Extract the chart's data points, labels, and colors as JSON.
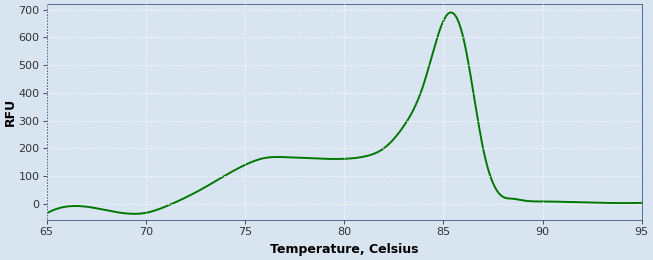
{
  "xlabel": "Temperature, Celsius",
  "ylabel": "RFU",
  "xlim": [
    65,
    95
  ],
  "ylim": [
    -60,
    720
  ],
  "xticks": [
    65,
    70,
    75,
    80,
    85,
    90,
    95
  ],
  "yticks": [
    0,
    100,
    200,
    300,
    400,
    500,
    600,
    700
  ],
  "line_color": "#007700",
  "line_width": 1.4,
  "background_color": "#d8e4f0",
  "grid_color": "#ffffff",
  "xlabel_fontsize": 9,
  "ylabel_fontsize": 9,
  "tick_fontsize": 8
}
